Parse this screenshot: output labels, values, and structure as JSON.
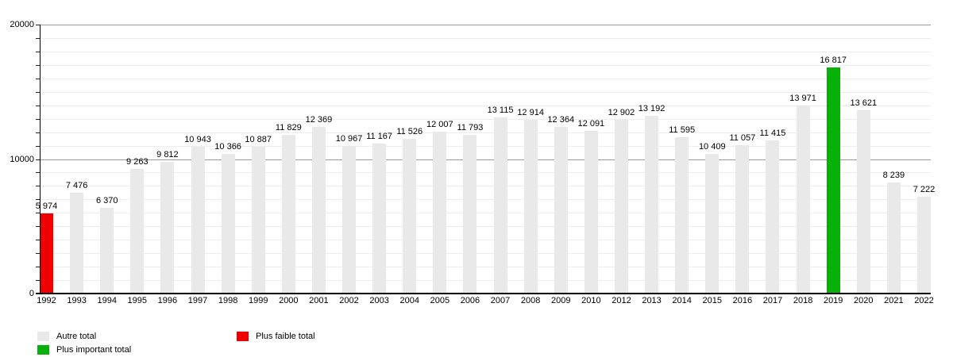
{
  "chart_data": {
    "type": "bar",
    "title": "",
    "xlabel": "",
    "ylabel": "",
    "categories": [
      "1992",
      "1993",
      "1994",
      "1995",
      "1996",
      "1997",
      "1998",
      "1999",
      "2000",
      "2001",
      "2002",
      "2003",
      "2004",
      "2005",
      "2006",
      "2007",
      "2008",
      "2009",
      "2010",
      "2012",
      "2013",
      "2014",
      "2015",
      "2016",
      "2017",
      "2018",
      "2019",
      "2020",
      "2021",
      "2022"
    ],
    "values": [
      5974,
      7476,
      6370,
      9263,
      9812,
      10943,
      10366,
      10887,
      11829,
      12369,
      10967,
      11167,
      11526,
      12007,
      11793,
      13115,
      12914,
      12364,
      12091,
      12902,
      13192,
      11595,
      10409,
      11057,
      11415,
      13971,
      16817,
      13621,
      8239,
      7222
    ],
    "value_labels": [
      "5 974",
      "7 476",
      "6 370",
      "9 263",
      "9 812",
      "10 943",
      "10 366",
      "10 887",
      "11 829",
      "12 369",
      "10 967",
      "11 167",
      "11 526",
      "12 007",
      "11 793",
      "13 115",
      "12 914",
      "12 364",
      "12 091",
      "12 902",
      "13 192",
      "11 595",
      "10 409",
      "11 057",
      "11 415",
      "13 971",
      "16 817",
      "13 621",
      "8 239",
      "7 222"
    ],
    "min_index": 0,
    "max_index": 26,
    "ylim": [
      0,
      20000
    ],
    "y_tick_values": [
      0,
      10000,
      20000
    ],
    "y_tick_labels": [
      "0",
      "10000",
      "20000"
    ],
    "y_minor_step": 1000,
    "y_major_step": 10000,
    "grid": "horizontal, minor every 1000, major every 10000",
    "legend_position": "bottom-left, two rows",
    "legend": [
      {
        "label": "Autre total",
        "color_key": "other"
      },
      {
        "label": "Plus faible total",
        "color_key": "min"
      },
      {
        "label": "Plus important total",
        "color_key": "max"
      }
    ],
    "colors": {
      "other": "#e9e9e9",
      "min": "#ee0000",
      "max": "#0ab00a"
    }
  }
}
